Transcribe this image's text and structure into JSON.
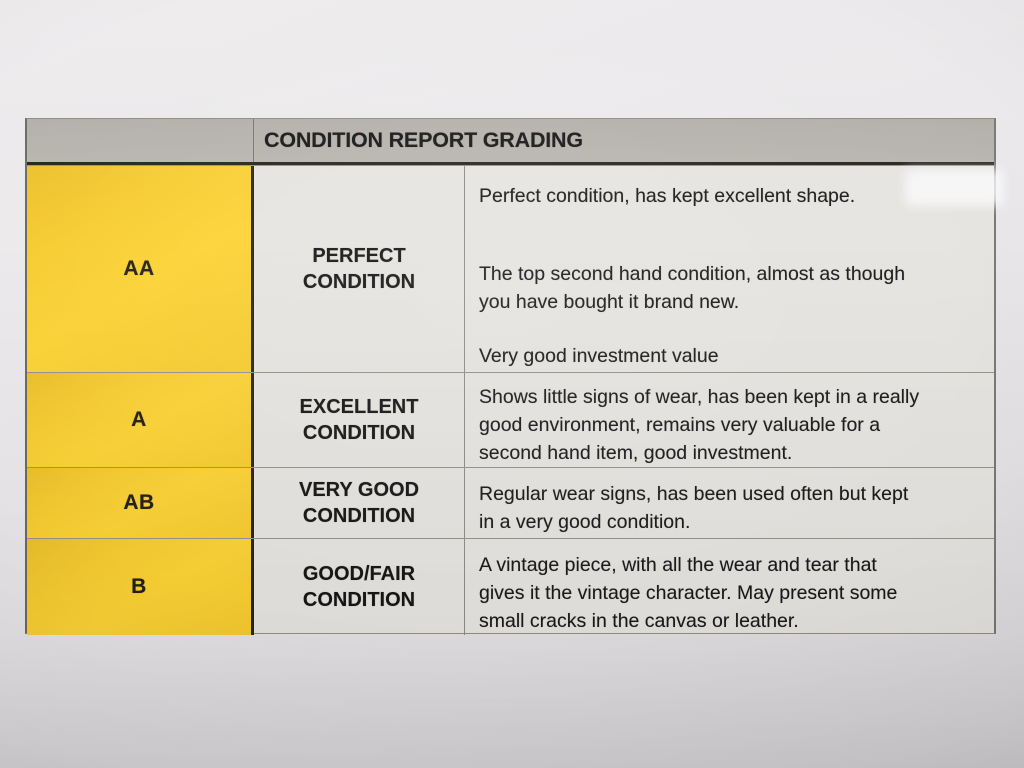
{
  "photo": {
    "paper_color": "#e9e7e9"
  },
  "table": {
    "title": "CONDITION REPORT GRADING",
    "colors": {
      "header_bg": "#b4b0aa",
      "grade_column_bg": "#f9cf30",
      "cell_bg": "#e6e4e0",
      "text": "#1a191b"
    },
    "rows": [
      {
        "code": "AA",
        "label_lines": [
          "PERFECT",
          "CONDITION"
        ],
        "paragraphs": [
          [
            "Perfect condition, has kept excellent shape."
          ],
          [
            "The top second hand condition, almost as though",
            "you have bought it brand new."
          ],
          [
            "Very good investment value"
          ]
        ]
      },
      {
        "code": "A",
        "label_lines": [
          "EXCELLENT",
          "CONDITION"
        ],
        "paragraphs": [
          [
            "Shows little signs of wear, has been kept in a really",
            "good environment, remains very valuable for a",
            "second hand item, good investment."
          ]
        ]
      },
      {
        "code": "AB",
        "label_lines": [
          "VERY GOOD",
          "CONDITION"
        ],
        "paragraphs": [
          [
            "Regular wear signs, has been used often but kept",
            "in a very good condition."
          ]
        ]
      },
      {
        "code": "B",
        "label_lines": [
          "GOOD/FAIR",
          "CONDITION"
        ],
        "paragraphs": [
          [
            "A vintage piece, with all the wear and tear that",
            "gives it the vintage character. May present some",
            "small cracks in the canvas or leather."
          ]
        ]
      }
    ]
  }
}
